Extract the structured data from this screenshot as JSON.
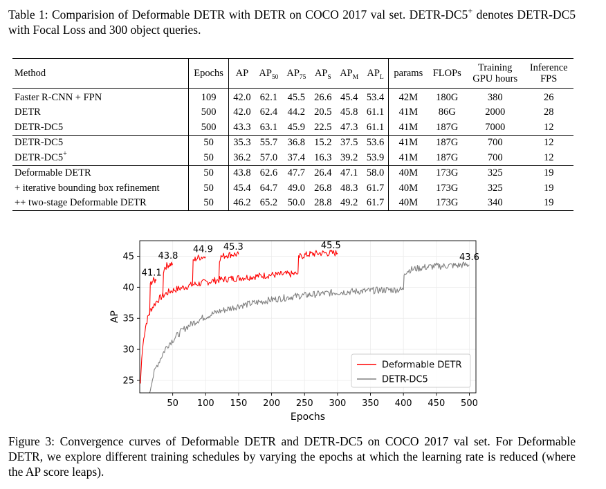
{
  "table_caption": {
    "lead": "Table 1:  Comparision of Deformable DETR with DETR on COCO 2017 val set.  DETR-DC5",
    "sup": "+",
    "rest": "denotes DETR-DC5 with Focal Loss and 300 object queries."
  },
  "table": {
    "headers": {
      "method": "Method",
      "epochs": "Epochs",
      "ap": "AP",
      "ap50_base": "AP",
      "ap50_sub": "50",
      "ap75_base": "AP",
      "ap75_sub": "75",
      "aps_base": "AP",
      "aps_sub": "S",
      "apm_base": "AP",
      "apm_sub": "M",
      "apl_base": "AP",
      "apl_sub": "L",
      "params": "params",
      "flops": "FLOPs",
      "training_line1": "Training",
      "training_line2": "GPU hours",
      "fps_line1": "Inference",
      "fps_line2": "FPS"
    },
    "groups": [
      [
        {
          "method": "Faster R-CNN + FPN",
          "method_sup": "",
          "epochs": "109",
          "ap": "42.0",
          "ap50": "62.1",
          "ap75": "45.5",
          "aps": "26.6",
          "apm": "45.4",
          "apl": "53.4",
          "params": "42M",
          "flops": "180G",
          "gpu_hours": "380",
          "fps": "26"
        },
        {
          "method": "DETR",
          "method_sup": "",
          "epochs": "500",
          "ap": "42.0",
          "ap50": "62.4",
          "ap75": "44.2",
          "aps": "20.5",
          "apm": "45.8",
          "apl": "61.1",
          "params": "41M",
          "flops": "86G",
          "gpu_hours": "2000",
          "fps": "28"
        },
        {
          "method": "DETR-DC5",
          "method_sup": "",
          "epochs": "500",
          "ap": "43.3",
          "ap50": "63.1",
          "ap75": "45.9",
          "aps": "22.5",
          "apm": "47.3",
          "apl": "61.1",
          "params": "41M",
          "flops": "187G",
          "gpu_hours": "7000",
          "fps": "12"
        }
      ],
      [
        {
          "method": "DETR-DC5",
          "method_sup": "",
          "epochs": "50",
          "ap": "35.3",
          "ap50": "55.7",
          "ap75": "36.8",
          "aps": "15.2",
          "apm": "37.5",
          "apl": "53.6",
          "params": "41M",
          "flops": "187G",
          "gpu_hours": "700",
          "fps": "12"
        },
        {
          "method": "DETR-DC5",
          "method_sup": "+",
          "epochs": "50",
          "ap": "36.2",
          "ap50": "57.0",
          "ap75": "37.4",
          "aps": "16.3",
          "apm": "39.2",
          "apl": "53.9",
          "params": "41M",
          "flops": "187G",
          "gpu_hours": "700",
          "fps": "12"
        }
      ],
      [
        {
          "method": "Deformable DETR",
          "method_sup": "",
          "epochs": "50",
          "ap": "43.8",
          "ap50": "62.6",
          "ap75": "47.7",
          "aps": "26.4",
          "apm": "47.1",
          "apl": "58.0",
          "params": "40M",
          "flops": "173G",
          "gpu_hours": "325",
          "fps": "19"
        },
        {
          "method": "+ iterative bounding box refinement",
          "method_sup": "",
          "epochs": "50",
          "ap": "45.4",
          "ap50": "64.7",
          "ap75": "49.0",
          "aps": "26.8",
          "apm": "48.3",
          "apl": "61.7",
          "params": "40M",
          "flops": "173G",
          "gpu_hours": "325",
          "fps": "19"
        },
        {
          "method": "++ two-stage Deformable DETR",
          "method_sup": "",
          "epochs": "50",
          "ap": "46.2",
          "ap50": "65.2",
          "ap75": "50.0",
          "aps": "28.8",
          "apm": "49.2",
          "apl": "61.7",
          "params": "40M",
          "flops": "173G",
          "gpu_hours": "340",
          "fps": "19"
        }
      ]
    ]
  },
  "chart_data": {
    "type": "line",
    "title": "",
    "xlabel": "Epochs",
    "ylabel": "AP",
    "xlim": [
      0,
      510
    ],
    "ylim": [
      23,
      47.5
    ],
    "xticks": [
      50,
      100,
      150,
      200,
      250,
      300,
      350,
      400,
      450,
      500
    ],
    "yticks": [
      25,
      30,
      35,
      40,
      45
    ],
    "grid": true,
    "legend_position": "lower-right",
    "series": [
      {
        "name": "Deformable DETR",
        "color": "#ff0000",
        "segments": [
          {
            "x": [
              1,
              3,
              5,
              7,
              9,
              12,
              15,
              18,
              22,
              26,
              30,
              35,
              40,
              45,
              50,
              60,
              70,
              80,
              90,
              100,
              110,
              120,
              130,
              140,
              150,
              160,
              170,
              180,
              190,
              200,
              210,
              220,
              230,
              240
            ],
            "y": [
              24.5,
              28.5,
              30.8,
              32.5,
              33.8,
              35.0,
              36.0,
              36.6,
              37.2,
              37.8,
              38.2,
              38.6,
              39.0,
              39.3,
              39.5,
              39.8,
              40.1,
              40.4,
              40.6,
              40.8,
              41.0,
              41.2,
              41.3,
              41.4,
              41.5,
              41.6,
              41.7,
              41.8,
              41.9,
              42.0,
              42.0,
              42.1,
              42.1,
              42.2
            ]
          },
          {
            "x": [
              15,
              16,
              17,
              18,
              20,
              22,
              24,
              25
            ],
            "y": [
              35.5,
              40.2,
              40.7,
              40.9,
              41.0,
              41.1,
              41.1,
              41.1
            ]
          },
          {
            "x": [
              35,
              36,
              37,
              40,
              43,
              46,
              49,
              50
            ],
            "y": [
              38.6,
              42.6,
              43.1,
              43.4,
              43.6,
              43.7,
              43.8,
              43.8
            ]
          },
          {
            "x": [
              80,
              81,
              82,
              85,
              90,
              95,
              100
            ],
            "y": [
              40.4,
              44.0,
              44.3,
              44.6,
              44.8,
              44.9,
              44.9
            ]
          },
          {
            "x": [
              120,
              121,
              122,
              126,
              132,
              140,
              150
            ],
            "y": [
              41.2,
              44.6,
              44.8,
              45.0,
              45.2,
              45.3,
              45.3
            ]
          },
          {
            "x": [
              240,
              241,
              242,
              248,
              256,
              265,
              275,
              285,
              295,
              300
            ],
            "y": [
              42.2,
              44.6,
              44.9,
              45.1,
              45.3,
              45.4,
              45.5,
              45.5,
              45.5,
              45.5
            ]
          }
        ],
        "annotations": [
          {
            "x": 18,
            "y": 41.1,
            "label": "41.1"
          },
          {
            "x": 43,
            "y": 43.8,
            "label": "43.8"
          },
          {
            "x": 96,
            "y": 44.9,
            "label": "44.9"
          },
          {
            "x": 142,
            "y": 45.3,
            "label": "45.3"
          },
          {
            "x": 290,
            "y": 45.5,
            "label": "45.5"
          }
        ]
      },
      {
        "name": "DETR-DC5",
        "color": "#808080",
        "segments": [
          {
            "x": [
              15,
              18,
              22,
              26,
              30,
              35,
              40,
              45,
              50,
              60,
              70,
              80,
              90,
              100,
              110,
              120,
              130,
              140,
              150,
              160,
              170,
              180,
              190,
              200,
              220,
              240,
              260,
              280,
              300,
              320,
              340,
              360,
              380,
              400
            ],
            "y": [
              23.0,
              24.8,
              26.2,
              27.4,
              28.2,
              29.3,
              30.3,
              31.0,
              31.5,
              32.6,
              33.5,
              34.2,
              34.8,
              35.3,
              35.7,
              36.1,
              36.4,
              36.7,
              37.0,
              37.2,
              37.4,
              37.6,
              37.8,
              38.0,
              38.3,
              38.6,
              38.8,
              39.0,
              39.2,
              39.3,
              39.4,
              39.5,
              39.6,
              39.6
            ]
          },
          {
            "x": [
              400,
              401,
              402,
              405,
              410,
              420,
              430,
              440,
              450,
              460,
              470,
              480,
              490,
              500
            ],
            "y": [
              39.6,
              42.1,
              42.4,
              42.6,
              42.8,
              43.0,
              43.2,
              43.3,
              43.4,
              43.4,
              43.5,
              43.5,
              43.6,
              43.6
            ]
          }
        ],
        "annotations": [
          {
            "x": 500,
            "y": 43.6,
            "label": "43.6"
          }
        ]
      }
    ]
  },
  "figure_caption": "Figure 3: Convergence curves of Deformable DETR and DETR-DC5 on COCO 2017 val set. For Deformable DETR, we explore different training schedules by varying the epochs at which the learning rate is reduced (where the AP score leaps)."
}
